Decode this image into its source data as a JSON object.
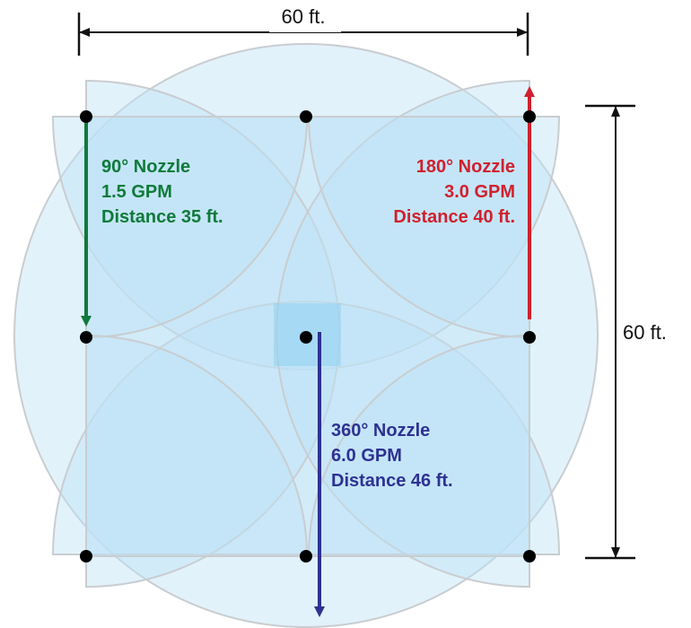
{
  "dimensions": {
    "width_label": "60 ft.",
    "height_label": "60 ft."
  },
  "nozzles": [
    {
      "id": "nozzle-90",
      "lines": [
        "90° Nozzle",
        "1.5 GPM",
        "Distance 35 ft."
      ],
      "color": "#0f7a3a"
    },
    {
      "id": "nozzle-180",
      "lines": [
        "180° Nozzle",
        "3.0 GPM",
        "Distance 40 ft."
      ],
      "color": "#d0202e"
    },
    {
      "id": "nozzle-360",
      "lines": [
        "360° Nozzle",
        "6.0 GPM",
        "Distance 46 ft."
      ],
      "color": "#2e3192"
    }
  ],
  "colors": {
    "coverage_fill": "#bfe3f6",
    "coverage_stroke": "#c9cdd0",
    "sprinkler_head": "#000000"
  }
}
